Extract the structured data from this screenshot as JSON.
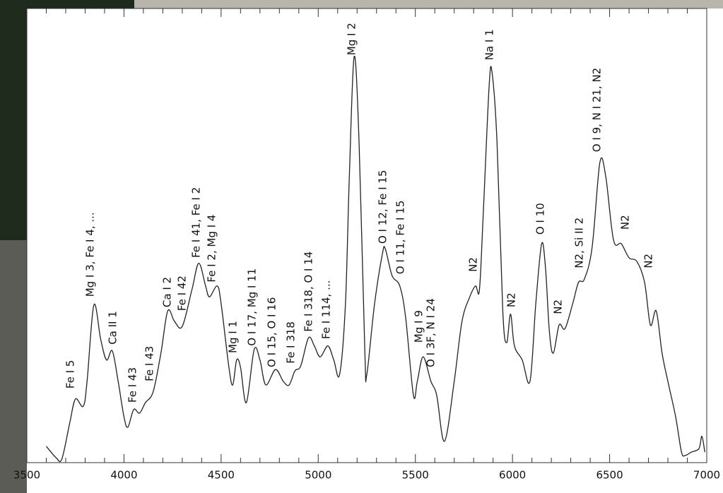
{
  "chart_data": {
    "type": "line",
    "x": [
      3600,
      3650,
      3680,
      3720,
      3750,
      3790,
      3810,
      3845,
      3880,
      3910,
      3940,
      3970,
      4000,
      4020,
      4050,
      4080,
      4110,
      4150,
      4190,
      4225,
      4260,
      4300,
      4350,
      4385,
      4420,
      4440,
      4480,
      4500,
      4540,
      4560,
      4580,
      4600,
      4630,
      4670,
      4700,
      4730,
      4780,
      4820,
      4850,
      4880,
      4910,
      4950,
      4980,
      5010,
      5050,
      5080,
      5110,
      5140,
      5160,
      5185,
      5210,
      5240,
      5250,
      5290,
      5330,
      5345,
      5380,
      5420,
      5450,
      5490,
      5510,
      5540,
      5580,
      5610,
      5650,
      5700,
      5740,
      5780,
      5810,
      5830,
      5850,
      5880,
      5895,
      5920,
      5950,
      5970,
      5990,
      6010,
      6050,
      6090,
      6120,
      6150,
      6170,
      6190,
      6210,
      6240,
      6270,
      6310,
      6340,
      6370,
      6410,
      6450,
      6480,
      6520,
      6560,
      6600,
      6640,
      6680,
      6710,
      6740,
      6770,
      6800,
      6840,
      6870,
      6890,
      6920,
      6960,
      6975,
      6990
    ],
    "values": [
      3.6,
      1.1,
      0.8,
      8.6,
      14.0,
      12.4,
      17.9,
      34.7,
      27.2,
      22.6,
      24.6,
      17.9,
      10.1,
      7.8,
      11.7,
      10.9,
      13.2,
      15.6,
      24.1,
      33.4,
      31.1,
      30.0,
      38.1,
      43.9,
      38.9,
      36.5,
      38.9,
      35.0,
      21.0,
      17.1,
      22.6,
      21.0,
      13.2,
      24.9,
      22.6,
      17.1,
      20.5,
      17.9,
      17.1,
      20.2,
      21.3,
      27.5,
      25.7,
      23.3,
      25.7,
      22.6,
      19.4,
      35.0,
      63.0,
      89.4,
      70.8,
      24.1,
      19.4,
      35.0,
      45.9,
      47.1,
      41.2,
      38.9,
      31.9,
      14.8,
      17.9,
      23.3,
      17.9,
      14.8,
      4.7,
      17.9,
      31.1,
      36.5,
      38.9,
      38.1,
      55.2,
      83.2,
      85.8,
      70.8,
      33.4,
      26.4,
      32.7,
      25.7,
      22.6,
      17.9,
      35.0,
      48.2,
      42.8,
      28.8,
      24.1,
      30.3,
      29.5,
      35.0,
      39.7,
      40.4,
      47.4,
      66.1,
      63.0,
      49.0,
      48.2,
      45.1,
      44.3,
      39.7,
      30.3,
      33.4,
      24.1,
      17.9,
      10.1,
      2.3,
      1.6,
      2.3,
      3.1,
      5.8,
      2.3
    ],
    "color": "#222222",
    "xlim": [
      3500,
      7000
    ],
    "xticks": [
      3500,
      4000,
      4500,
      5000,
      5500,
      6000,
      6500,
      7000
    ],
    "ylim": [
      0,
      100
    ],
    "annotations": [
      {
        "text": "Fe I 5",
        "x": 3725,
        "y": 16.3
      },
      {
        "text": "Mg I 3, Fe I 4, ...",
        "x": 3827,
        "y": 36.5
      },
      {
        "text": "Ca II 1",
        "x": 3944,
        "y": 26.0
      },
      {
        "text": "Fe I 43",
        "x": 4046,
        "y": 13.2
      },
      {
        "text": "Fe I 43",
        "x": 4133,
        "y": 17.9
      },
      {
        "text": "Ca I 2",
        "x": 4224,
        "y": 34.2
      },
      {
        "text": "Fe I 42",
        "x": 4300,
        "y": 33.4
      },
      {
        "text": "Fe I 41, Fe I 2",
        "x": 4373,
        "y": 45.1
      },
      {
        "text": "Fe I 2, Mg I 4",
        "x": 4453,
        "y": 39.7
      },
      {
        "text": "Mg I 1",
        "x": 4562,
        "y": 24.1
      },
      {
        "text": "O I 17, Mg I 11",
        "x": 4660,
        "y": 25.7
      },
      {
        "text": "O I 15, O I 16",
        "x": 4762,
        "y": 21.0
      },
      {
        "text": "Fe I 318",
        "x": 4860,
        "y": 21.8
      },
      {
        "text": "Fe I 318, O I 14",
        "x": 4951,
        "y": 28.8
      },
      {
        "text": "Fe I 114, ...",
        "x": 5042,
        "y": 27.2
      },
      {
        "text": "Mg I 2",
        "x": 5173,
        "y": 89.7
      },
      {
        "text": "O I 12, Fe I 15",
        "x": 5333,
        "y": 48.2
      },
      {
        "text": "O I 11, Fe I 15",
        "x": 5424,
        "y": 41.5
      },
      {
        "text": "Mg I 9",
        "x": 5519,
        "y": 26.4
      },
      {
        "text": "O I 3F, N I 24",
        "x": 5581,
        "y": 21.0
      },
      {
        "text": "N2",
        "x": 5799,
        "y": 42.0
      },
      {
        "text": "Na I 1",
        "x": 5883,
        "y": 88.6
      },
      {
        "text": "N2",
        "x": 5996,
        "y": 34.2
      },
      {
        "text": "O I 10",
        "x": 6145,
        "y": 50.2
      },
      {
        "text": "N2",
        "x": 6236,
        "y": 32.7
      },
      {
        "text": "N2, Si II 2",
        "x": 6345,
        "y": 42.8
      },
      {
        "text": "O I 9, N I 21, N2",
        "x": 6436,
        "y": 68.4
      },
      {
        "text": "N2",
        "x": 6581,
        "y": 51.3
      },
      {
        "text": "N2",
        "x": 6701,
        "y": 42.8
      }
    ]
  }
}
